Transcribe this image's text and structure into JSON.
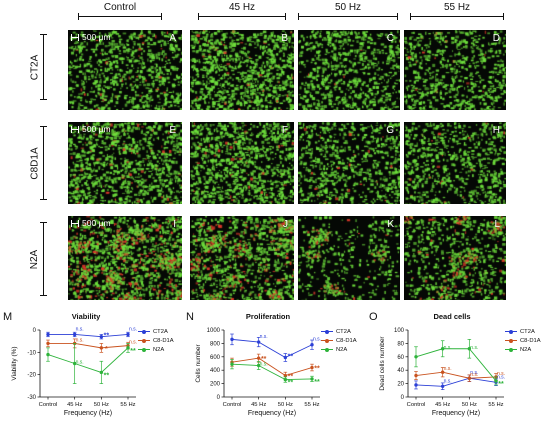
{
  "figure": {
    "columns": [
      "Control",
      "45 Hz",
      "50 Hz",
      "55 Hz"
    ],
    "rows": [
      "CT2A",
      "C8D1A",
      "N2A"
    ],
    "scale_label": "500 μm",
    "panel_labels": [
      "A",
      "B",
      "C",
      "D",
      "E",
      "F",
      "G",
      "H",
      "I",
      "J",
      "K",
      "L"
    ],
    "tile_colors": {
      "live": "#6ee03c",
      "dead": "#e03a2a",
      "background": "#050805"
    }
  },
  "legend": [
    {
      "name": "CT2A",
      "color": "#2b3fd6"
    },
    {
      "name": "C8-D1A",
      "color": "#c9521e"
    },
    {
      "name": "N2A",
      "color": "#2db33a"
    }
  ],
  "chart_data": [
    {
      "panel": "M",
      "type": "line",
      "title": "Viability",
      "xlabel": "Frequency (Hz)",
      "ylabel": "Viability (%)",
      "categories": [
        "Control",
        "45 Hz",
        "50 Hz",
        "55 Hz"
      ],
      "ylim": [
        -30,
        0
      ],
      "yticks": [
        "0",
        "-10",
        "-20",
        "-30"
      ],
      "series": [
        {
          "name": "CT2A",
          "color": "#2b3fd6",
          "values": [
            -2,
            -2,
            -3,
            -2
          ],
          "err": [
            1,
            1,
            1,
            1
          ],
          "annotations": [
            "",
            "n.s.",
            "**",
            "n.s."
          ]
        },
        {
          "name": "C8-D1A",
          "color": "#c9521e",
          "values": [
            -6,
            -6,
            -8,
            -7
          ],
          "err": [
            1.5,
            2,
            2,
            1.5
          ],
          "annotations": [
            "",
            "n.s.",
            "*",
            "n.s."
          ]
        },
        {
          "name": "N2A",
          "color": "#2db33a",
          "values": [
            -11,
            -15,
            -19,
            -8
          ],
          "err": [
            3,
            9,
            5,
            2
          ],
          "annotations": [
            "",
            "n.s.",
            "**",
            "**"
          ]
        }
      ]
    },
    {
      "panel": "N",
      "type": "line",
      "title": "Proliferation",
      "xlabel": "Frequency (Hz)",
      "ylabel": "Cells number",
      "categories": [
        "Control",
        "45 Hz",
        "50 Hz",
        "55 Hz"
      ],
      "ylim": [
        0,
        1000
      ],
      "yticks": [
        "0",
        "200",
        "400",
        "600",
        "800",
        "1000"
      ],
      "series": [
        {
          "name": "CT2A",
          "color": "#2b3fd6",
          "values": [
            860,
            820,
            590,
            780
          ],
          "err": [
            80,
            70,
            60,
            70
          ],
          "annotations": [
            "",
            "n.s.",
            "**",
            "n.s."
          ]
        },
        {
          "name": "C8-D1A",
          "color": "#c9521e",
          "values": [
            520,
            580,
            320,
            440
          ],
          "err": [
            60,
            60,
            50,
            50
          ],
          "annotations": [
            "",
            "**",
            "**",
            "**"
          ]
        },
        {
          "name": "N2A",
          "color": "#2db33a",
          "values": [
            490,
            470,
            260,
            270
          ],
          "err": [
            70,
            60,
            40,
            40
          ],
          "annotations": [
            "",
            "n.s.",
            "**",
            "**"
          ]
        }
      ]
    },
    {
      "panel": "O",
      "type": "line",
      "title": "Dead cells",
      "xlabel": "Frequency (Hz)",
      "ylabel": "Dead cells number",
      "categories": [
        "Control",
        "45 Hz",
        "50 Hz",
        "55 Hz"
      ],
      "ylim": [
        0,
        100
      ],
      "yticks": [
        "0",
        "20",
        "40",
        "60",
        "80",
        "100"
      ],
      "series": [
        {
          "name": "CT2A",
          "color": "#2b3fd6",
          "values": [
            18,
            16,
            28,
            22
          ],
          "err": [
            6,
            5,
            5,
            5
          ],
          "annotations": [
            "",
            "n.s.",
            "n.s.",
            "n.s."
          ]
        },
        {
          "name": "C8-D1A",
          "color": "#c9521e",
          "values": [
            32,
            37,
            28,
            30
          ],
          "err": [
            6,
            7,
            5,
            5
          ],
          "annotations": [
            "",
            "n.s.",
            "n.s.",
            "n.s."
          ]
        },
        {
          "name": "N2A",
          "color": "#2db33a",
          "values": [
            60,
            72,
            72,
            24
          ],
          "err": [
            15,
            12,
            14,
            6
          ],
          "annotations": [
            "",
            "n.s.",
            "n.s.",
            "**"
          ]
        }
      ]
    }
  ]
}
